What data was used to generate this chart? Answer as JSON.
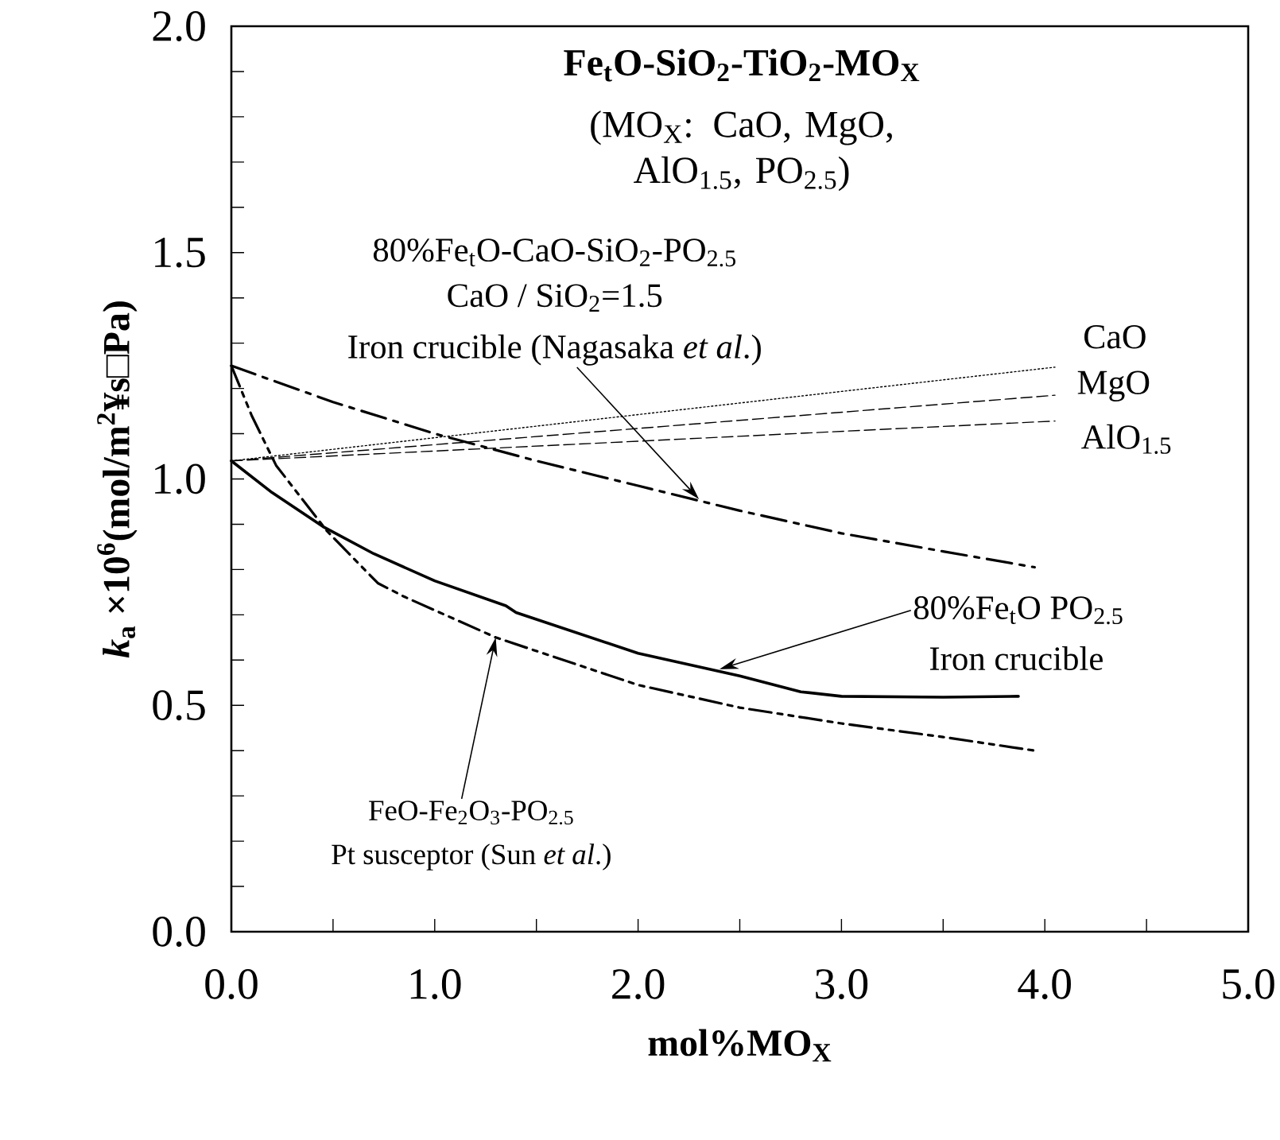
{
  "chart_data": {
    "type": "line",
    "title": "Fe$_{t}$O-SiO$_{2}$-TiO$_{2}$-MO$_{X}$",
    "subtitle": "(MO$_{X}$: CaO, MgO, AlO$_{1.5}$, PO$_{2.5}$)",
    "xlabel": "mol%MO$_{X}$",
    "ylabel": "*k*$_{a}$ ×10$^{6}$(mol/m$^{2}$¥s□Pa)",
    "xlim": [
      0,
      5
    ],
    "ylim": [
      0,
      2
    ],
    "xticks": [
      {
        "value": 0,
        "label": "0.0"
      },
      {
        "value": 0.5,
        "label": null
      },
      {
        "value": 1,
        "label": "1.0"
      },
      {
        "value": 1.5,
        "label": null
      },
      {
        "value": 2,
        "label": "2.0"
      },
      {
        "value": 2.5,
        "label": null
      },
      {
        "value": 3,
        "label": "3.0"
      },
      {
        "value": 3.5,
        "label": null
      },
      {
        "value": 4,
        "label": "4.0"
      },
      {
        "value": 4.5,
        "label": null
      },
      {
        "value": 5,
        "label": "5.0"
      }
    ],
    "yticks": [
      {
        "value": 0,
        "label": "0.0"
      },
      {
        "value": 0.1,
        "label": null
      },
      {
        "value": 0.2,
        "label": null
      },
      {
        "value": 0.3,
        "label": null
      },
      {
        "value": 0.4,
        "label": null
      },
      {
        "value": 0.5,
        "label": "0.5"
      },
      {
        "value": 0.6,
        "label": null
      },
      {
        "value": 0.7,
        "label": null
      },
      {
        "value": 0.8,
        "label": null
      },
      {
        "value": 0.9,
        "label": null
      },
      {
        "value": 1,
        "label": "1.0"
      },
      {
        "value": 1.1,
        "label": null
      },
      {
        "value": 1.2,
        "label": null
      },
      {
        "value": 1.3,
        "label": null
      },
      {
        "value": 1.4,
        "label": null
      },
      {
        "value": 1.5,
        "label": "1.5"
      },
      {
        "value": 1.6,
        "label": null
      },
      {
        "value": 1.7,
        "label": null
      },
      {
        "value": 1.8,
        "label": null
      },
      {
        "value": 1.9,
        "label": null
      },
      {
        "value": 2,
        "label": "2.0"
      }
    ],
    "marker": "none",
    "series": [
      {
        "name": "CaO",
        "color": "#000000",
        "line_style": "dotted",
        "x": [
          0,
          4.05
        ],
        "values": [
          1.04,
          1.247
        ]
      },
      {
        "name": "MgO",
        "color": "#000000",
        "line_style": "dashed",
        "x": [
          0,
          4.05
        ],
        "values": [
          1.04,
          1.185
        ]
      },
      {
        "name": "AlO$_{1.5}$",
        "color": "#000000",
        "line_style": "dashed",
        "x": [
          0,
          4.05
        ],
        "values": [
          1.04,
          1.128
        ]
      },
      {
        "color": "#000000",
        "line_style": "dashdot",
        "x": [
          0,
          0.5,
          1.0,
          1.5,
          2.0,
          2.5,
          3.0,
          3.5,
          3.95
        ],
        "values": [
          1.25,
          1.17,
          1.1,
          1.04,
          0.985,
          0.93,
          0.88,
          0.84,
          0.805
        ]
      },
      {
        "color": "#000000",
        "line_style": "dashdotdot",
        "x": [
          0,
          0.1,
          0.22,
          0.47,
          0.72,
          0.85,
          1.3,
          2.0,
          2.5,
          3.0,
          3.5,
          3.95
        ],
        "values": [
          1.25,
          1.14,
          1.03,
          0.885,
          0.77,
          0.74,
          0.65,
          0.545,
          0.495,
          0.46,
          0.43,
          0.4
        ]
      },
      {
        "color": "#000000",
        "line_style": "solid",
        "x": [
          0,
          0.2,
          0.45,
          0.7,
          1.0,
          1.35,
          1.4,
          2.0,
          2.5,
          2.8,
          3.0,
          3.5,
          3.87
        ],
        "values": [
          1.04,
          0.97,
          0.895,
          0.835,
          0.775,
          0.72,
          0.705,
          0.615,
          0.565,
          0.53,
          0.52,
          0.518,
          0.52
        ]
      }
    ],
    "annotations": [
      "80%Fe$_{t}$O-CaO-SiO$_{2}$-PO$_{2.5}$",
      "CaO / SiO$_{2}$=1.5",
      {
        "text": "Iron crucible (Nagasaka *et al*.)",
        "x": 2.3,
        "y": 0.955
      },
      {
        "text": "80%Fe$_{t}$O  PO$_{2.5}$",
        "x": 2.4,
        "y": 0.58
      },
      "Iron crucible",
      {
        "text": "FeO-Fe$_{2}$O$_{3}$-PO$_{2.5}$",
        "x": 1.3,
        "y": 0.65
      },
      "Pt susceptor (Sun *et al*.)"
    ]
  }
}
